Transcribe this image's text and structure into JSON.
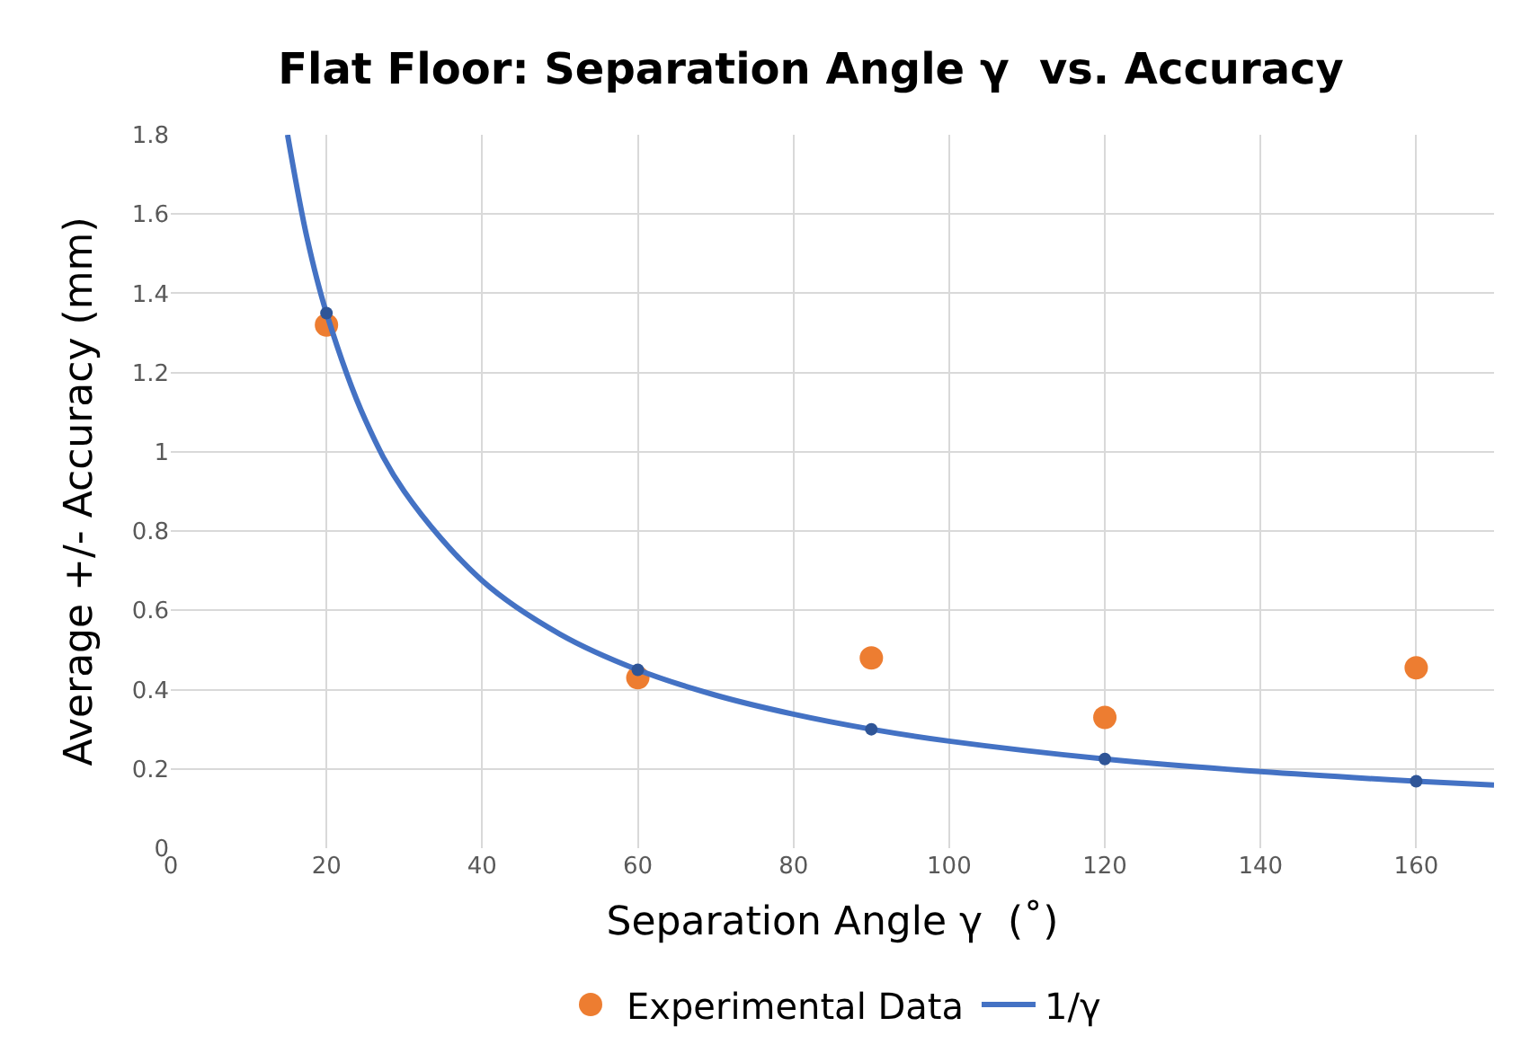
{
  "chart_data": {
    "type": "scatter",
    "title": "Flat Floor: Separation Angle γ  vs. Accuracy",
    "xlabel": "Separation Angle γ  (˚)",
    "ylabel": "Average +/- Accuracy (mm)",
    "xlim": [
      0,
      170
    ],
    "ylim": [
      0,
      1.8
    ],
    "xticks": [
      0,
      20,
      40,
      60,
      80,
      100,
      120,
      140,
      160
    ],
    "yticks": [
      0,
      {
        "value": 0.2,
        "label": "0.2"
      },
      {
        "value": 0.4,
        "label": "0.4"
      },
      {
        "value": 0.6,
        "label": "0.6"
      },
      {
        "value": 0.8,
        "label": "0.8"
      },
      1,
      {
        "value": 1.2,
        "label": "1.2"
      },
      {
        "value": 1.4,
        "label": "1.4"
      },
      {
        "value": 1.6,
        "label": "1.6"
      },
      {
        "value": 1.8,
        "label": "1.8"
      }
    ],
    "grid": true,
    "legend": "bottom",
    "marker": "circle",
    "series": [
      {
        "name": "Experimental Data",
        "color": "#ed7d31",
        "x": [
          20,
          60,
          90,
          120,
          160
        ],
        "values": [
          1.32,
          0.43,
          0.48,
          0.33,
          0.455
        ]
      },
      {
        "name": "1/γ",
        "type": "line",
        "color": "#4472c4",
        "marker": "none",
        "x": [
          15,
          17.5,
          20,
          25,
          30,
          40,
          50,
          60,
          70,
          80,
          90,
          100,
          120,
          140,
          160,
          170
        ],
        "values": [
          1.8,
          1.54,
          1.35,
          1.08,
          0.9,
          0.675,
          0.54,
          0.45,
          0.386,
          0.338,
          0.3,
          0.27,
          0.225,
          0.193,
          0.169,
          0.159
        ]
      },
      {
        "color": "#2f5597",
        "x": [
          20,
          60,
          90,
          120,
          160
        ],
        "values": [
          1.35,
          0.45,
          0.3,
          0.225,
          0.169
        ]
      }
    ]
  }
}
